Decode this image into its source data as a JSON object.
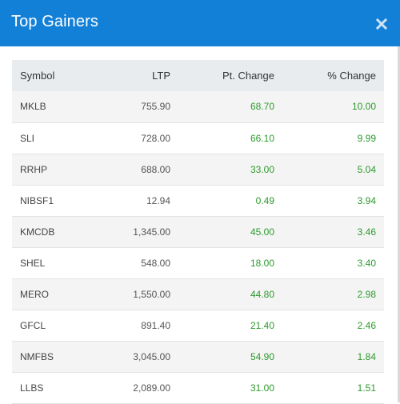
{
  "modal": {
    "title": "Top Gainers",
    "close_icon": "close-icon",
    "accent_color": "#1380d8",
    "gain_color": "#2c9a2c"
  },
  "table": {
    "headers": {
      "symbol": "Symbol",
      "ltp": "LTP",
      "pt_change": "Pt. Change",
      "pct_change": "% Change"
    },
    "rows": [
      {
        "symbol": "MKLB",
        "ltp": "755.90",
        "pt_change": "68.70",
        "pct_change": "10.00"
      },
      {
        "symbol": "SLI",
        "ltp": "728.00",
        "pt_change": "66.10",
        "pct_change": "9.99"
      },
      {
        "symbol": "RRHP",
        "ltp": "688.00",
        "pt_change": "33.00",
        "pct_change": "5.04"
      },
      {
        "symbol": "NIBSF1",
        "ltp": "12.94",
        "pt_change": "0.49",
        "pct_change": "3.94"
      },
      {
        "symbol": "KMCDB",
        "ltp": "1,345.00",
        "pt_change": "45.00",
        "pct_change": "3.46"
      },
      {
        "symbol": "SHEL",
        "ltp": "548.00",
        "pt_change": "18.00",
        "pct_change": "3.40"
      },
      {
        "symbol": "MERO",
        "ltp": "1,550.00",
        "pt_change": "44.80",
        "pct_change": "2.98"
      },
      {
        "symbol": "GFCL",
        "ltp": "891.40",
        "pt_change": "21.40",
        "pct_change": "2.46"
      },
      {
        "symbol": "NMFBS",
        "ltp": "3,045.00",
        "pt_change": "54.90",
        "pct_change": "1.84"
      },
      {
        "symbol": "LLBS",
        "ltp": "2,089.00",
        "pt_change": "31.00",
        "pct_change": "1.51"
      }
    ]
  }
}
